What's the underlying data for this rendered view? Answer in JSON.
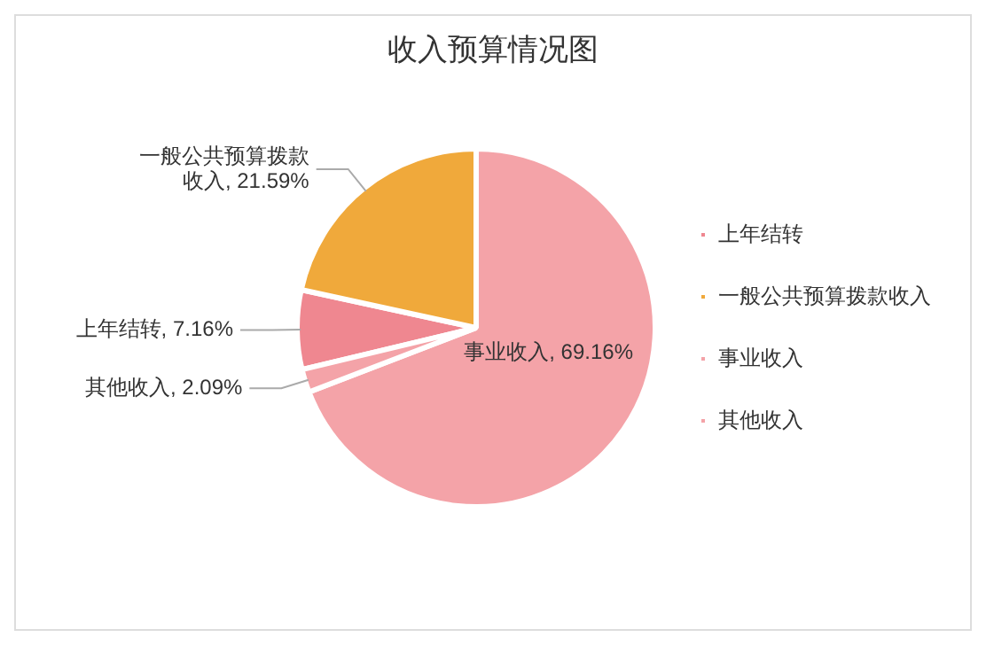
{
  "chart_data": {
    "type": "pie",
    "title": "收入预算情况图",
    "categories": [
      "上年结转",
      "一般公共预算拨款收入",
      "事业收入",
      "其他收入"
    ],
    "values": [
      7.16,
      21.59,
      69.16,
      2.09
    ],
    "colors": [
      "#ef8790",
      "#f0a93b",
      "#f4a3a8",
      "#f4a3a8"
    ],
    "value_labels": [
      "上年结转, 7.16%",
      "一般公共预算拨款收入, 21.59%",
      "事业收入, 69.16%",
      "其他收入, 2.09%"
    ],
    "legend": "right"
  }
}
